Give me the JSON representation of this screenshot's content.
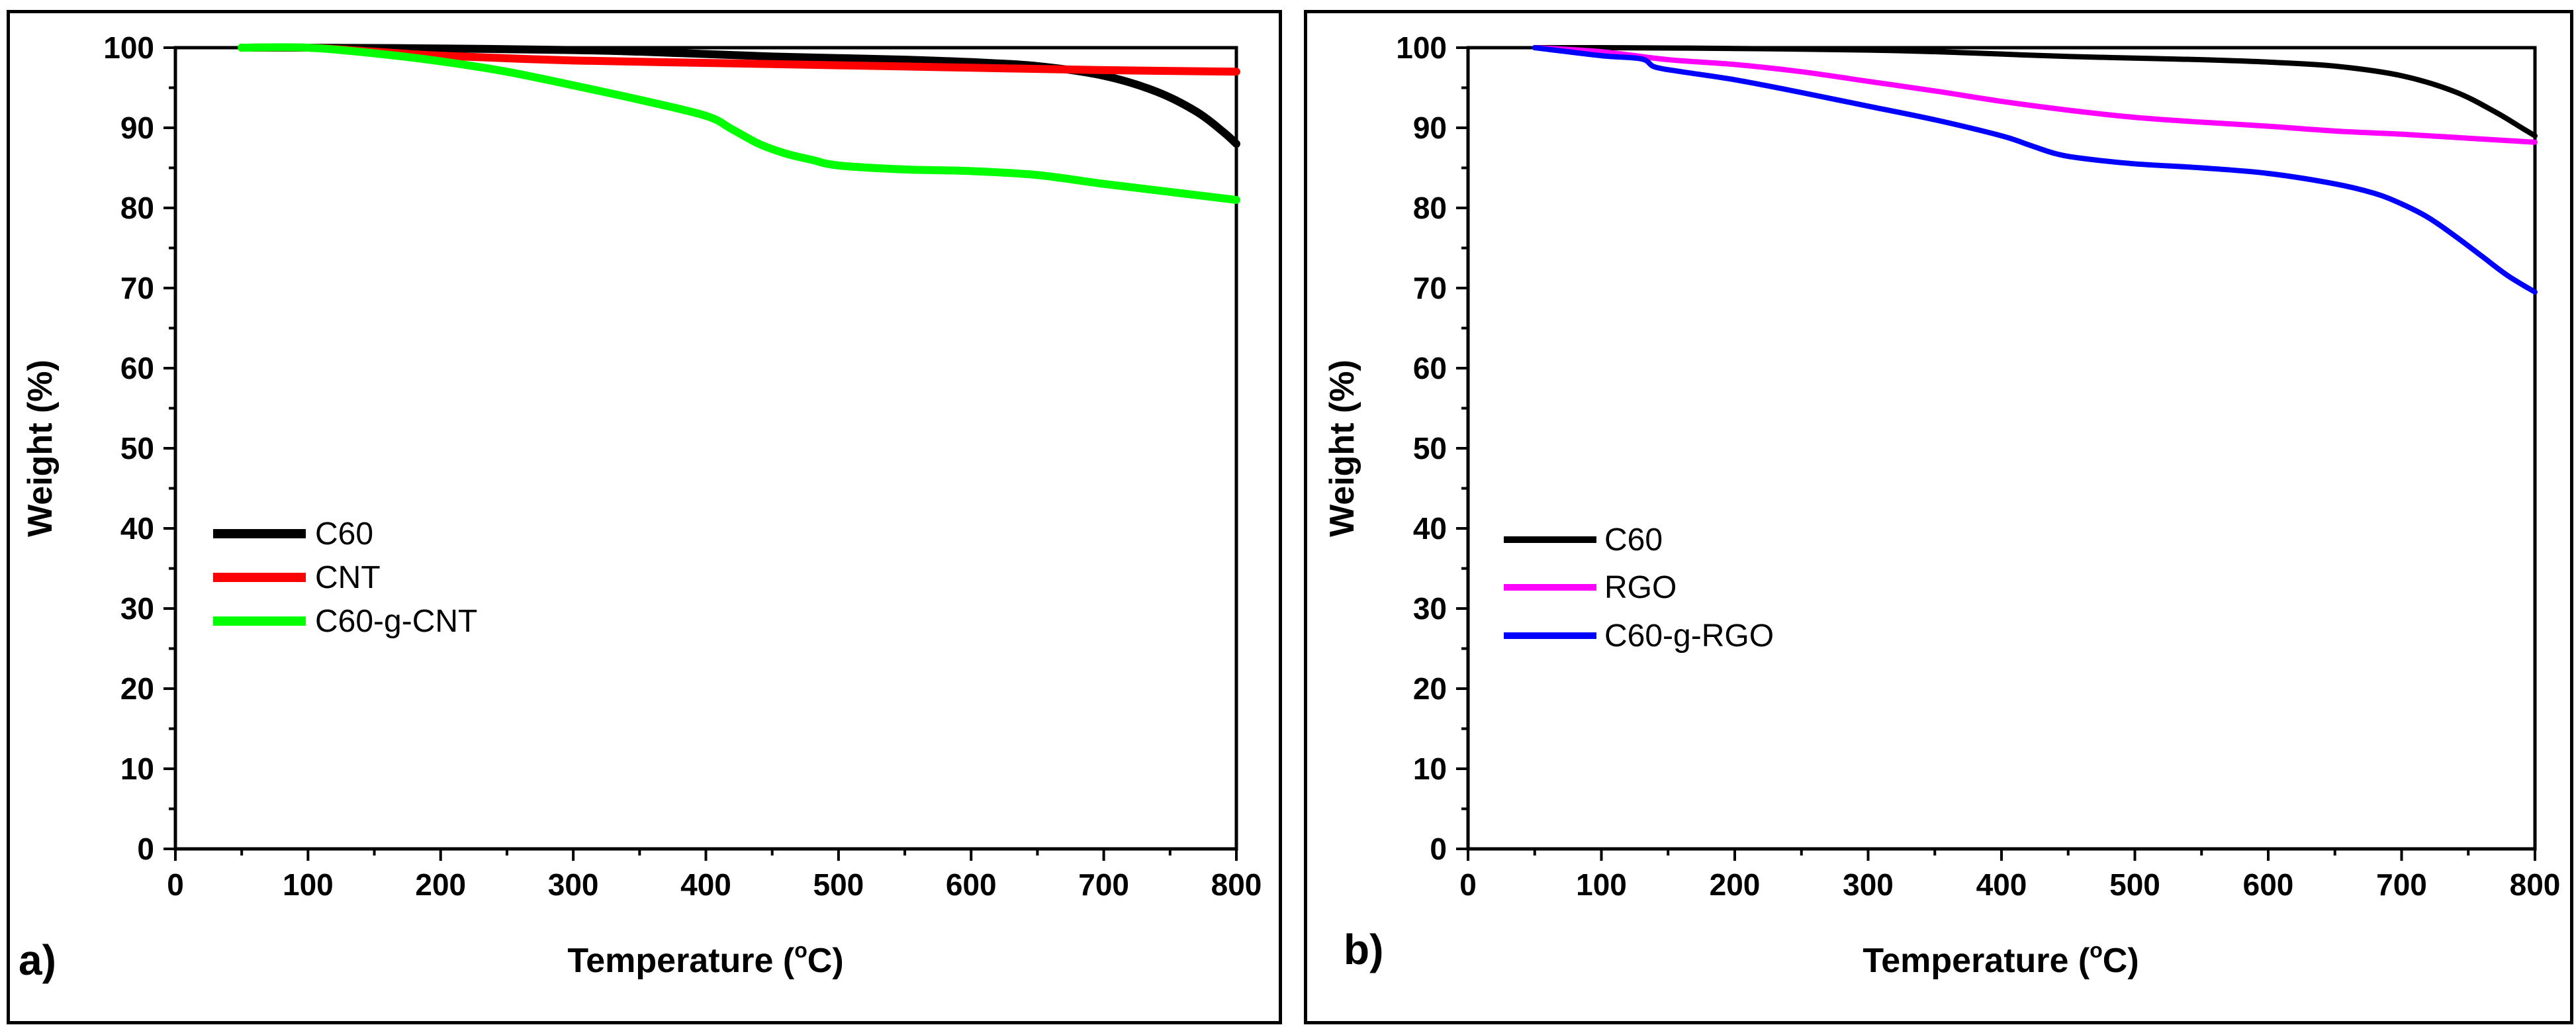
{
  "chart_data": [
    {
      "type": "line",
      "panel_label": "a)",
      "xlabel": "Temperature (",
      "xlabel_unit": "C)",
      "xlabel_degree": "o",
      "ylabel": "Weight (%)",
      "xlim": [
        0,
        800
      ],
      "ylim": [
        0,
        100
      ],
      "xticks": [
        "0",
        "100",
        "200",
        "300",
        "400",
        "500",
        "600",
        "700",
        "800"
      ],
      "yticks": [
        "0",
        "10",
        "20",
        "30",
        "40",
        "50",
        "60",
        "70",
        "80",
        "90",
        "100"
      ],
      "legend_position": "center-left",
      "series": [
        {
          "name": "C60",
          "color": "#000000",
          "x": [
            50,
            100,
            200,
            300,
            350,
            400,
            450,
            500,
            550,
            600,
            650,
            700,
            740,
            770,
            790,
            800
          ],
          "y": [
            100,
            100,
            99.9,
            99.7,
            99.5,
            99.2,
            98.9,
            98.7,
            98.5,
            98.2,
            97.7,
            96.5,
            94.5,
            92,
            89.5,
            88
          ]
        },
        {
          "name": "CNT",
          "color": "#ff0000",
          "x": [
            50,
            100,
            150,
            200,
            300,
            400,
            500,
            600,
            700,
            800
          ],
          "y": [
            100,
            100,
            99.5,
            99,
            98.4,
            98.1,
            97.8,
            97.5,
            97.2,
            97
          ]
        },
        {
          "name": "C60-g-CNT",
          "color": "#00ff00",
          "x": [
            50,
            100,
            150,
            200,
            250,
            300,
            350,
            400,
            420,
            440,
            460,
            480,
            500,
            550,
            600,
            650,
            700,
            750,
            800
          ],
          "y": [
            100,
            100,
            99.3,
            98.3,
            97,
            95.3,
            93.5,
            91.5,
            89.8,
            88,
            86.8,
            86,
            85.3,
            84.8,
            84.6,
            84.1,
            83,
            82,
            81
          ]
        }
      ]
    },
    {
      "type": "line",
      "panel_label": "b)",
      "xlabel": "Temperature (",
      "xlabel_unit": "C)",
      "xlabel_degree": "o",
      "ylabel": "Weight (%)",
      "xlim": [
        0,
        800
      ],
      "ylim": [
        0,
        100
      ],
      "xticks": [
        "0",
        "100",
        "200",
        "300",
        "400",
        "500",
        "600",
        "700",
        "800"
      ],
      "yticks": [
        "0",
        "10",
        "20",
        "30",
        "40",
        "50",
        "60",
        "70",
        "80",
        "90",
        "100"
      ],
      "legend_position": "center-left",
      "series": [
        {
          "name": "C60",
          "color": "#000000",
          "x": [
            50,
            100,
            200,
            300,
            350,
            400,
            450,
            500,
            550,
            600,
            650,
            700,
            740,
            770,
            790,
            800
          ],
          "y": [
            100,
            100,
            99.9,
            99.7,
            99.5,
            99.2,
            98.9,
            98.7,
            98.5,
            98.2,
            97.7,
            96.5,
            94.5,
            92,
            90,
            89
          ]
        },
        {
          "name": "RGO",
          "color": "#ff00ff",
          "x": [
            50,
            100,
            150,
            200,
            250,
            300,
            350,
            400,
            450,
            500,
            550,
            600,
            650,
            700,
            750,
            800
          ],
          "y": [
            100,
            99.5,
            98.5,
            97.9,
            97,
            95.8,
            94.6,
            93.3,
            92.2,
            91.3,
            90.7,
            90.2,
            89.6,
            89.2,
            88.7,
            88.2
          ]
        },
        {
          "name": "C60-g-RGO",
          "color": "#0000ff",
          "x": [
            50,
            100,
            130,
            140,
            160,
            200,
            250,
            300,
            350,
            400,
            420,
            440,
            460,
            500,
            550,
            600,
            650,
            680,
            700,
            720,
            740,
            760,
            780,
            800
          ],
          "y": [
            100,
            99,
            98.6,
            97.6,
            97,
            96,
            94.4,
            92.7,
            91,
            89,
            87.9,
            86.8,
            86.2,
            85.5,
            85,
            84.3,
            83,
            81.8,
            80.5,
            78.8,
            76.5,
            74,
            71.5,
            69.5
          ]
        }
      ]
    }
  ]
}
